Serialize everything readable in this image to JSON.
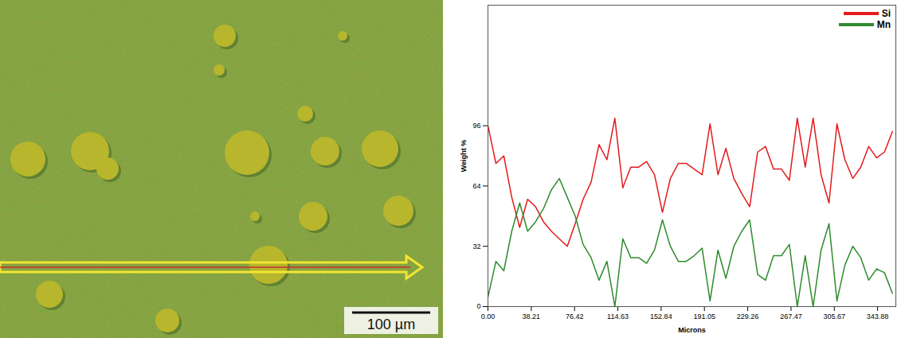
{
  "micrograph": {
    "scale_label": "100 µm"
  },
  "chart_data": {
    "type": "line",
    "x_label": "Microns",
    "y_label": "Weight %",
    "x": [
      0,
      7,
      14,
      21,
      28,
      35,
      42,
      49,
      56,
      63,
      70,
      77,
      84,
      91,
      98,
      105,
      112,
      119,
      126,
      133,
      140,
      147,
      154,
      161,
      168,
      175,
      182,
      189,
      196,
      203,
      210,
      217,
      224,
      231,
      238,
      245,
      252,
      259,
      266,
      273,
      280,
      287,
      294,
      301,
      308,
      315,
      322,
      329,
      336,
      343,
      350,
      357
    ],
    "series": [
      {
        "name": "Si",
        "color": "#e31a1c",
        "values": [
          96,
          76,
          80,
          58,
          42,
          57,
          53,
          45,
          40,
          36,
          32,
          44,
          57,
          66,
          86,
          78,
          100,
          63,
          74,
          74,
          77,
          70,
          50,
          68,
          76,
          76,
          73,
          70,
          97,
          70,
          84,
          68,
          60,
          53,
          82,
          85,
          73,
          73,
          67,
          100,
          74,
          100,
          70,
          55,
          97,
          78,
          68,
          74,
          85,
          79,
          82,
          93
        ]
      },
      {
        "name": "Mn",
        "color": "#2e8b2e",
        "values": [
          5,
          24,
          19,
          40,
          55,
          40,
          45,
          52,
          62,
          68,
          58,
          48,
          33,
          26,
          14,
          24,
          0,
          36,
          26,
          26,
          23,
          30,
          46,
          32,
          24,
          24,
          27,
          31,
          3,
          30,
          15,
          32,
          40,
          46,
          17,
          14,
          27,
          27,
          33,
          0,
          27,
          0,
          30,
          44,
          3,
          22,
          32,
          26,
          14,
          20,
          18,
          7
        ]
      }
    ],
    "xlim": [
      0,
      360
    ],
    "ylim": [
      0,
      160
    ],
    "xticks": [
      {
        "value": 0,
        "label": "0.00"
      },
      38.21,
      76.42,
      114.63,
      152.84,
      191.05,
      229.26,
      267.47,
      305.67,
      343.88
    ],
    "yticks": [
      0,
      32,
      64,
      96
    ],
    "legend": "top-right",
    "grid": false
  }
}
